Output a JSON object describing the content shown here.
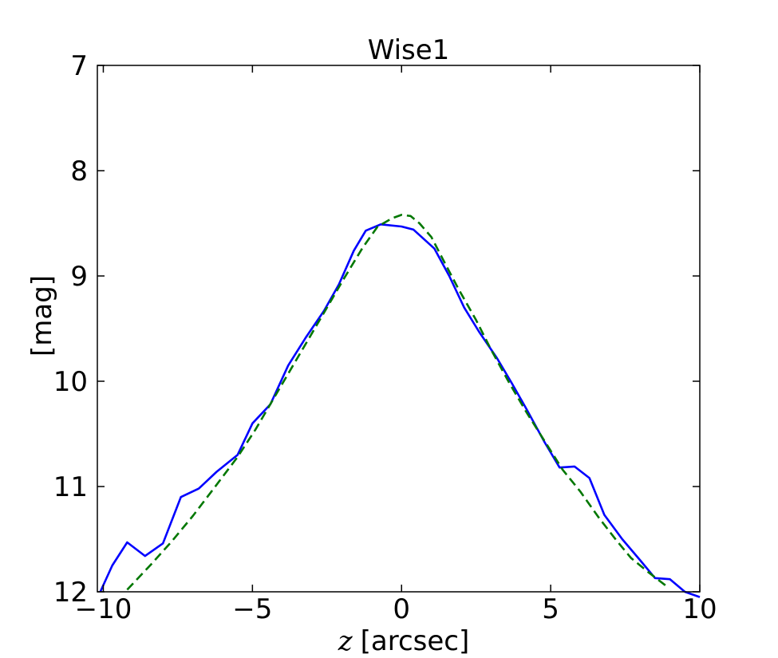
{
  "chart_data": {
    "type": "line",
    "title": "Wise1",
    "xlabel_var": "z",
    "xlabel_unit": "[arcsec]",
    "ylabel": "[mag]",
    "xlim": [
      -10.2,
      10.0
    ],
    "ylim": [
      12,
      7
    ],
    "y_inverted": true,
    "grid": false,
    "xticks": [
      -10,
      -5,
      0,
      5,
      10
    ],
    "xtick_labels": [
      "−10",
      "−5",
      "0",
      "5",
      "10"
    ],
    "yticks": [
      7,
      8,
      9,
      10,
      11,
      12
    ],
    "ytick_labels": [
      "7",
      "8",
      "9",
      "10",
      "11",
      "12"
    ],
    "series": [
      {
        "color": "#0000ff",
        "style": "solid",
        "x": [
          -10.1,
          -9.7,
          -9.2,
          -8.6,
          -8.0,
          -7.4,
          -6.8,
          -6.2,
          -5.5,
          -5.0,
          -4.4,
          -3.8,
          -3.2,
          -2.6,
          -2.1,
          -1.6,
          -1.2,
          -0.7,
          0.0,
          0.4,
          1.1,
          1.6,
          2.1,
          2.6,
          3.2,
          3.7,
          4.2,
          4.8,
          5.3,
          5.8,
          6.3,
          6.8,
          7.4,
          8.0,
          8.5,
          9.0,
          9.5,
          10.0
        ],
        "y": [
          12.0,
          11.75,
          11.53,
          11.66,
          11.54,
          11.1,
          11.02,
          10.86,
          10.7,
          10.4,
          10.22,
          9.85,
          9.58,
          9.33,
          9.08,
          8.76,
          8.57,
          8.51,
          8.53,
          8.56,
          8.74,
          9.0,
          9.3,
          9.53,
          9.78,
          10.02,
          10.27,
          10.58,
          10.82,
          10.81,
          10.92,
          11.27,
          11.5,
          11.7,
          11.87,
          11.88,
          12.0,
          12.05
        ]
      },
      {
        "color": "#007700",
        "style": "dashed",
        "x": [
          -9.2,
          -8.4,
          -7.7,
          -7.0,
          -6.3,
          -5.5,
          -4.9,
          -4.3,
          -3.7,
          -3.1,
          -2.5,
          -1.9,
          -1.3,
          -0.8,
          -0.3,
          0.0,
          0.3,
          0.6,
          1.0,
          1.4,
          1.9,
          2.5,
          3.0,
          3.6,
          4.2,
          4.8,
          5.4,
          6.0,
          6.6,
          7.2,
          7.7,
          8.3,
          8.9
        ],
        "y": [
          11.98,
          11.74,
          11.52,
          11.28,
          11.02,
          10.72,
          10.46,
          10.17,
          9.88,
          9.59,
          9.3,
          9.01,
          8.73,
          8.53,
          8.45,
          8.42,
          8.43,
          8.5,
          8.63,
          8.85,
          9.12,
          9.42,
          9.7,
          10.01,
          10.3,
          10.57,
          10.84,
          11.05,
          11.29,
          11.51,
          11.68,
          11.82,
          11.95
        ]
      }
    ]
  }
}
